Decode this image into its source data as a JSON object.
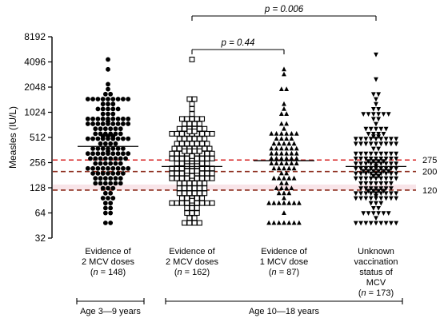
{
  "chart_data": {
    "type": "scatter",
    "ylabel": "Measles (IU/L)",
    "yscale": "log2",
    "ylim": [
      32,
      8192
    ],
    "y_ticks": [
      32,
      64,
      128,
      256,
      512,
      1024,
      2048,
      4096,
      8192
    ],
    "y_tick_labels": [
      "32",
      "64",
      "128",
      "256",
      "512",
      "1024",
      "2048",
      "4096",
      "8192"
    ],
    "shaded_band": [
      120,
      140
    ],
    "reference_lines": [
      {
        "value": 275,
        "label": "275",
        "color": "#d62020"
      },
      {
        "value": 200,
        "label": "200",
        "color": "#8b2a1a"
      },
      {
        "value": 120,
        "label": "120",
        "color": "#8b2a1a"
      }
    ],
    "groups": [
      {
        "line1": "Evidence of",
        "line2": "2 MCV doses",
        "line3": "148",
        "line4": "",
        "n": 148,
        "marker": "circle",
        "median": 400,
        "min": 50,
        "max": 4500
      },
      {
        "line1": "Evidence of",
        "line2": "2 MCV doses",
        "line3": "162",
        "line4": "",
        "n": 162,
        "marker": "square",
        "median": 230,
        "min": 50,
        "max": 4200
      },
      {
        "line1": "Evidence of",
        "line2": "1 MCV dose",
        "line3": "87",
        "line4": "",
        "n": 87,
        "marker": "triangle-up",
        "median": 270,
        "min": 50,
        "max": 3500
      },
      {
        "line1": "Unknown",
        "line2": "vaccination",
        "line3": "status of",
        "line4": "MCV",
        "line5": "173",
        "n": 173,
        "marker": "triangle-down",
        "median": 230,
        "min": 50,
        "max": 4700
      }
    ],
    "comparisons": [
      {
        "from": 1,
        "to": 2,
        "label": "p = 0.44"
      },
      {
        "from": 1,
        "to": 3,
        "label": "p = 0.006"
      }
    ],
    "age_groups": [
      {
        "label": "Age 3—9 years",
        "from": 0,
        "to": 0
      },
      {
        "label": "Age 10—18 years",
        "from": 1,
        "to": 3
      }
    ],
    "n_prefix": "n",
    "grid": false
  }
}
